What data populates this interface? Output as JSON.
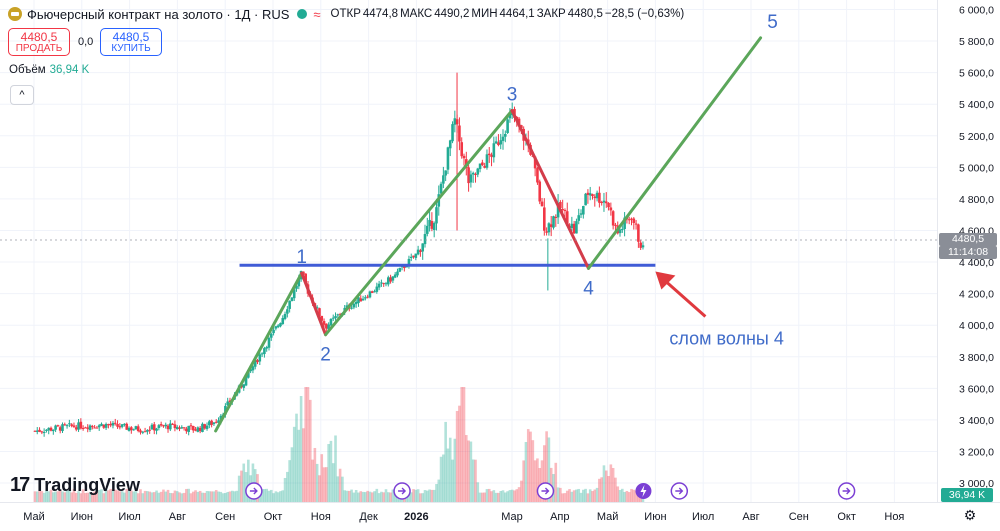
{
  "header": {
    "title": "Фьючерсный контракт на золото · 1Д · RUS",
    "ohlc": [
      {
        "label": "ОТКР",
        "value": "4474,8"
      },
      {
        "label": "МАКС",
        "value": "4490,2"
      },
      {
        "label": "МИН",
        "value": "4464,1"
      },
      {
        "label": "ЗАКР",
        "value": "4480,5"
      }
    ],
    "change": "−28,5 (−0,63%)"
  },
  "trade": {
    "sell_price": "4480,5",
    "sell_label": "ПРОДАТЬ",
    "spread": "0,0",
    "buy_price": "4480,5",
    "buy_label": "КУПИТЬ"
  },
  "volume": {
    "label": "Объём",
    "value": "36,94 K"
  },
  "logo": "TradingView",
  "colors": {
    "up": "#22ab94",
    "down": "#f23645",
    "wave": "#5ba65a",
    "correction": "#d33c4a",
    "support": "#3f5bd6",
    "annotation": "#3f6bc9",
    "arrow": "#e0393e"
  },
  "price_badge": {
    "value": "4480,5",
    "timer": "11:14:08"
  },
  "volume_badge": "36,94 K",
  "chart_data": {
    "type": "candlestick",
    "instrument": "Фьючерсный контракт на золото",
    "timeframe": "1Д",
    "y_ticks": [
      3000,
      3200,
      3400,
      3600,
      3800,
      4000,
      4200,
      4400,
      4600,
      4800,
      5000,
      5200,
      5400,
      5600,
      5800,
      6000
    ],
    "y_tick_labels": [
      "3 000,0",
      "3 200,0",
      "3 400,0",
      "3 600,0",
      "3 800,0",
      "4 000,0",
      "4 200,0",
      "4 400,0",
      "4 600,0",
      "4 800,0",
      "5 000,0",
      "5 200,0",
      "5 400,0",
      "5 600,0",
      "5 800,0",
      "6 000,0"
    ],
    "ylim": [
      2880,
      6060
    ],
    "x_labels": [
      {
        "label": "Май",
        "t": 0
      },
      {
        "label": "Июн",
        "t": 1
      },
      {
        "label": "Июл",
        "t": 2
      },
      {
        "label": "Авг",
        "t": 3
      },
      {
        "label": "Сен",
        "t": 4
      },
      {
        "label": "Окт",
        "t": 5
      },
      {
        "label": "Ноя",
        "t": 6
      },
      {
        "label": "Дек",
        "t": 7
      },
      {
        "label": "2026",
        "t": 8
      },
      {
        "label": "Мар",
        "t": 10
      },
      {
        "label": "Апр",
        "t": 11
      },
      {
        "label": "Май",
        "t": 12
      },
      {
        "label": "Июн",
        "t": 13
      },
      {
        "label": "Июл",
        "t": 14
      },
      {
        "label": "Авг",
        "t": 15
      },
      {
        "label": "Сен",
        "t": 16
      },
      {
        "label": "Окт",
        "t": 17
      },
      {
        "label": "Ноя",
        "t": 18
      }
    ],
    "price_path": [
      {
        "t": 0.0,
        "p": 3330
      },
      {
        "t": 0.8,
        "p": 3360
      },
      {
        "t": 1.5,
        "p": 3370
      },
      {
        "t": 2.2,
        "p": 3340
      },
      {
        "t": 2.8,
        "p": 3360
      },
      {
        "t": 3.4,
        "p": 3340
      },
      {
        "t": 3.8,
        "p": 3390
      },
      {
        "t": 4.3,
        "p": 3600
      },
      {
        "t": 4.8,
        "p": 3850
      },
      {
        "t": 5.2,
        "p": 4050
      },
      {
        "t": 5.6,
        "p": 4330
      },
      {
        "t": 5.75,
        "p": 4200
      },
      {
        "t": 6.1,
        "p": 3990
      },
      {
        "t": 6.5,
        "p": 4100
      },
      {
        "t": 7.0,
        "p": 4200
      },
      {
        "t": 7.5,
        "p": 4300
      },
      {
        "t": 8.0,
        "p": 4450
      },
      {
        "t": 8.4,
        "p": 4700
      },
      {
        "t": 8.8,
        "p": 5300
      },
      {
        "t": 9.1,
        "p": 4900
      },
      {
        "t": 9.6,
        "p": 5100
      },
      {
        "t": 10.0,
        "p": 5340
      },
      {
        "t": 10.4,
        "p": 5100
      },
      {
        "t": 10.7,
        "p": 4600
      },
      {
        "t": 11.0,
        "p": 4750
      },
      {
        "t": 11.3,
        "p": 4600
      },
      {
        "t": 11.6,
        "p": 4850
      },
      {
        "t": 12.0,
        "p": 4780
      },
      {
        "t": 12.2,
        "p": 4580
      },
      {
        "t": 12.5,
        "p": 4700
      },
      {
        "t": 12.65,
        "p": 4550
      },
      {
        "t": 12.75,
        "p": 4480
      }
    ],
    "volume_series": [
      {
        "t": 4.5,
        "v": 0.35
      },
      {
        "t": 5.5,
        "v": 0.6
      },
      {
        "t": 5.7,
        "v": 1.0
      },
      {
        "t": 6.2,
        "v": 0.6
      },
      {
        "t": 8.7,
        "v": 0.75
      },
      {
        "t": 9.0,
        "v": 1.0
      },
      {
        "t": 10.4,
        "v": 0.55
      },
      {
        "t": 10.7,
        "v": 0.6
      },
      {
        "t": 12.0,
        "v": 0.3
      }
    ],
    "elliott_waves": [
      {
        "label": "1",
        "from_t": 3.8,
        "from_p": 3330,
        "to_t": 5.6,
        "to_p": 4330,
        "kind": "impulse"
      },
      {
        "label": "2",
        "from_t": 5.6,
        "from_p": 4330,
        "to_t": 6.1,
        "to_p": 3940,
        "kind": "correction"
      },
      {
        "label": "3",
        "from_t": 6.1,
        "from_p": 3940,
        "to_t": 10.0,
        "to_p": 5360,
        "kind": "impulse"
      },
      {
        "label": "4",
        "from_t": 10.0,
        "from_p": 5360,
        "to_t": 11.6,
        "to_p": 4360,
        "kind": "correction"
      },
      {
        "label": "5",
        "from_t": 11.6,
        "from_p": 4360,
        "to_t": 15.2,
        "to_p": 5820,
        "kind": "impulse"
      }
    ],
    "support_line": {
      "from_t": 4.3,
      "to_t": 13.0,
      "p": 4380
    },
    "annotation": {
      "text": "слом волны 4",
      "arrow_to_t": 13.0,
      "arrow_to_p": 4340
    }
  }
}
